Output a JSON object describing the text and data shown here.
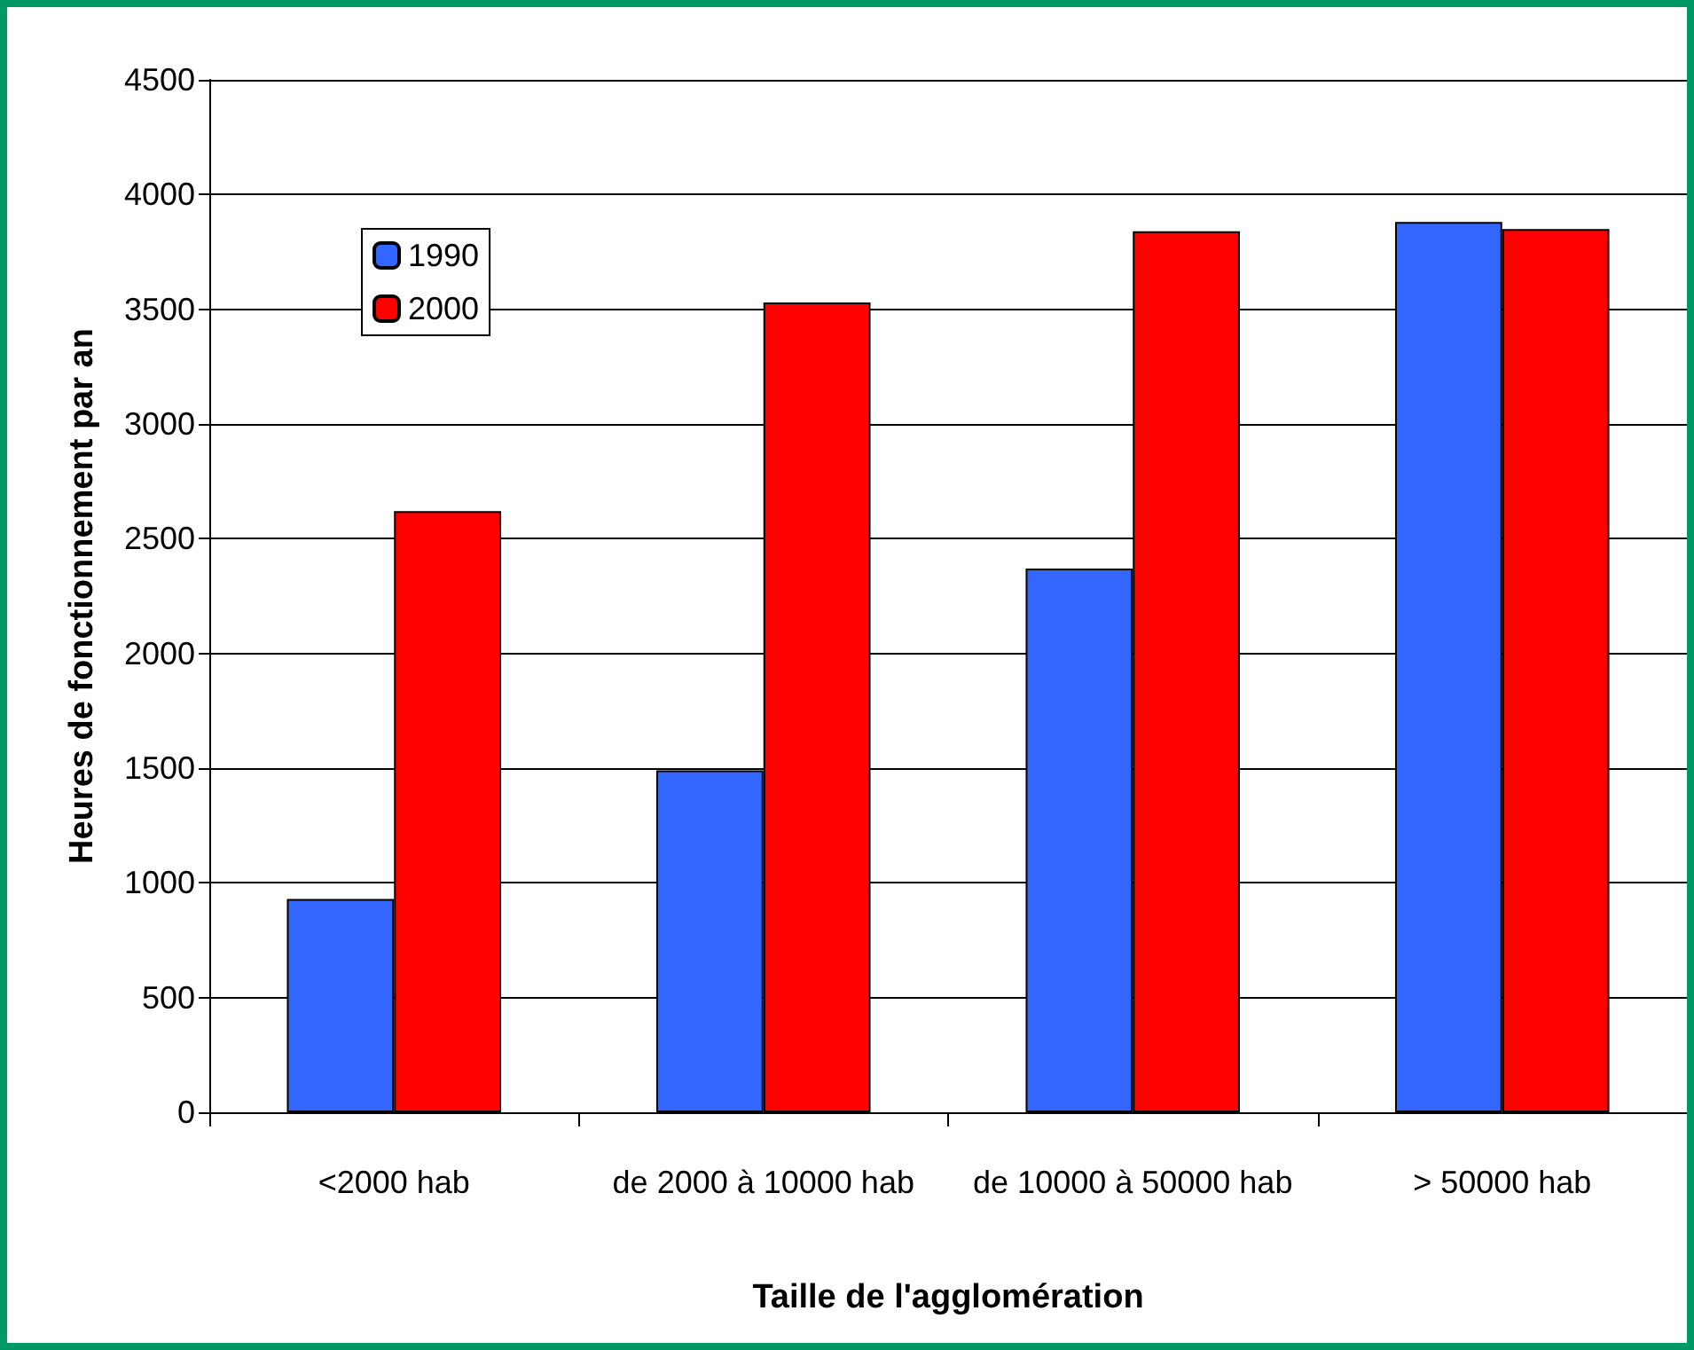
{
  "chart_data": {
    "type": "bar",
    "xlabel": "Taille de l'agglomération",
    "ylabel": "Heures de fonctionnement par an",
    "categories": [
      "<2000 hab",
      "de 2000 à 10000 hab",
      "de 10000 à 50000 hab",
      "> 50000 hab"
    ],
    "series": [
      {
        "name": "1990",
        "color": "#3366ff",
        "values": [
          930,
          1490,
          2370,
          3880
        ]
      },
      {
        "name": "2000",
        "color": "#ff0000",
        "values": [
          2620,
          3530,
          3840,
          3850
        ]
      }
    ],
    "ylim": [
      0,
      4500
    ],
    "yticks": [
      0,
      500,
      1000,
      1500,
      2000,
      2500,
      3000,
      3500,
      4000,
      4500
    ],
    "grid": "y",
    "legend": "top left"
  }
}
